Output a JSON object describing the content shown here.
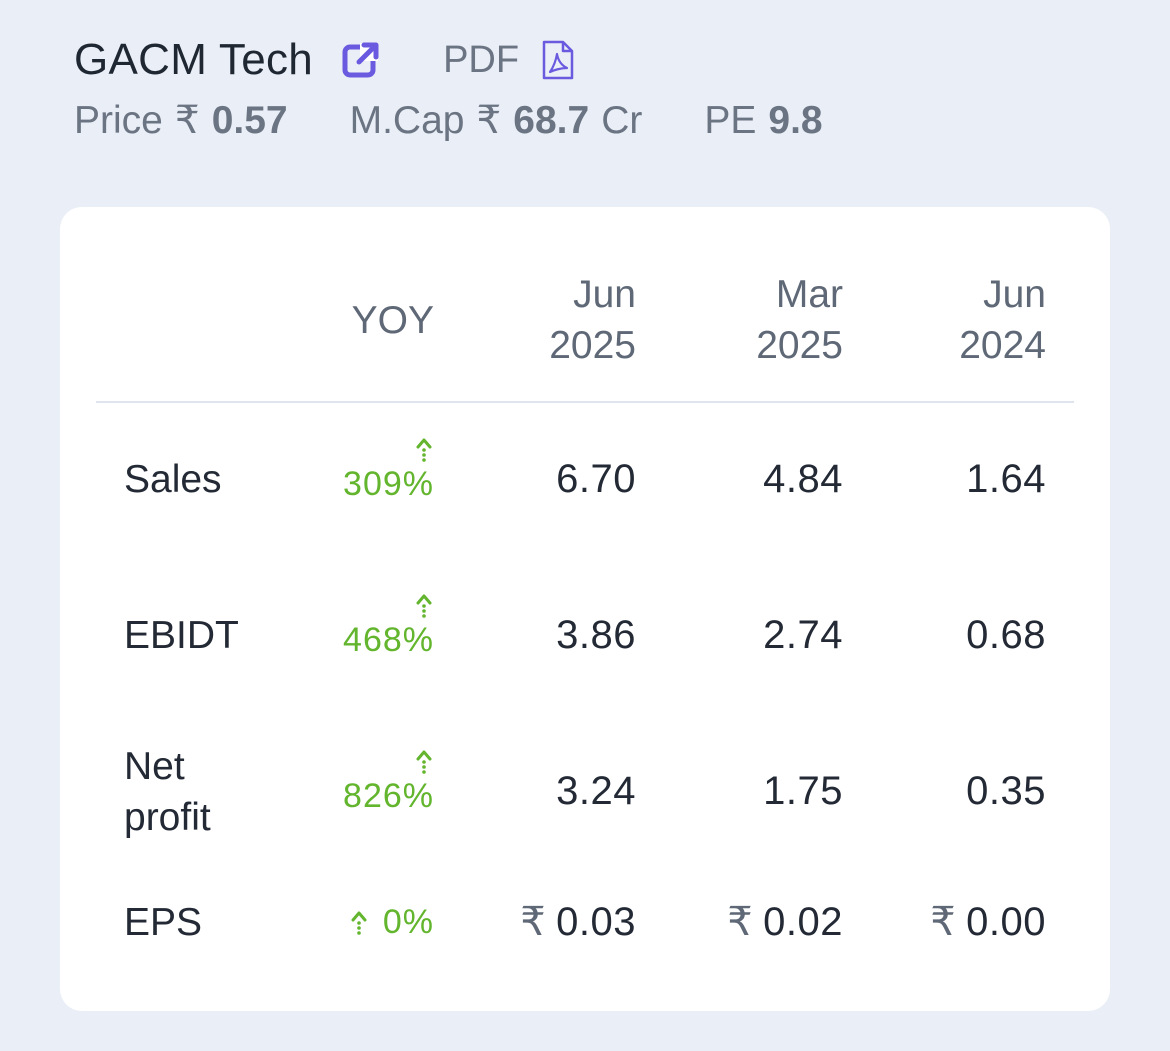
{
  "header": {
    "company_name": "GACM Tech",
    "pdf_label": "PDF",
    "price_label": "Price",
    "price_currency": "₹",
    "price_value": "0.57",
    "mcap_label": "M.Cap",
    "mcap_currency": "₹",
    "mcap_value": "68.7",
    "mcap_suffix": "Cr",
    "pe_label": "PE",
    "pe_value": "9.8"
  },
  "table": {
    "columns": {
      "yoy": "YOY",
      "c1_line1": "Jun",
      "c1_line2": "2025",
      "c2_line1": "Mar",
      "c2_line2": "2025",
      "c3_line1": "Jun",
      "c3_line2": "2024"
    },
    "rows": [
      {
        "label": "Sales",
        "yoy": "309%",
        "c1": "6.70",
        "c2": "4.84",
        "c3": "1.64"
      },
      {
        "label": "EBIDT",
        "yoy": "468%",
        "c1": "3.86",
        "c2": "2.74",
        "c3": "0.68"
      },
      {
        "label_line1": "Net",
        "label_line2": "profit",
        "yoy": "826%",
        "c1": "3.24",
        "c2": "1.75",
        "c3": "0.35"
      },
      {
        "label": "EPS",
        "yoy": "0%",
        "currency": "₹",
        "c1": "0.03",
        "c2": "0.02",
        "c3": "0.00"
      }
    ]
  },
  "colors": {
    "accent": "#6a5ae0",
    "positive": "#62b52d",
    "background": "#eaeef6"
  },
  "icons": {
    "external": "external-link-icon",
    "pdf": "pdf-file-icon",
    "yoy_trend": "arrow-up-icon"
  }
}
